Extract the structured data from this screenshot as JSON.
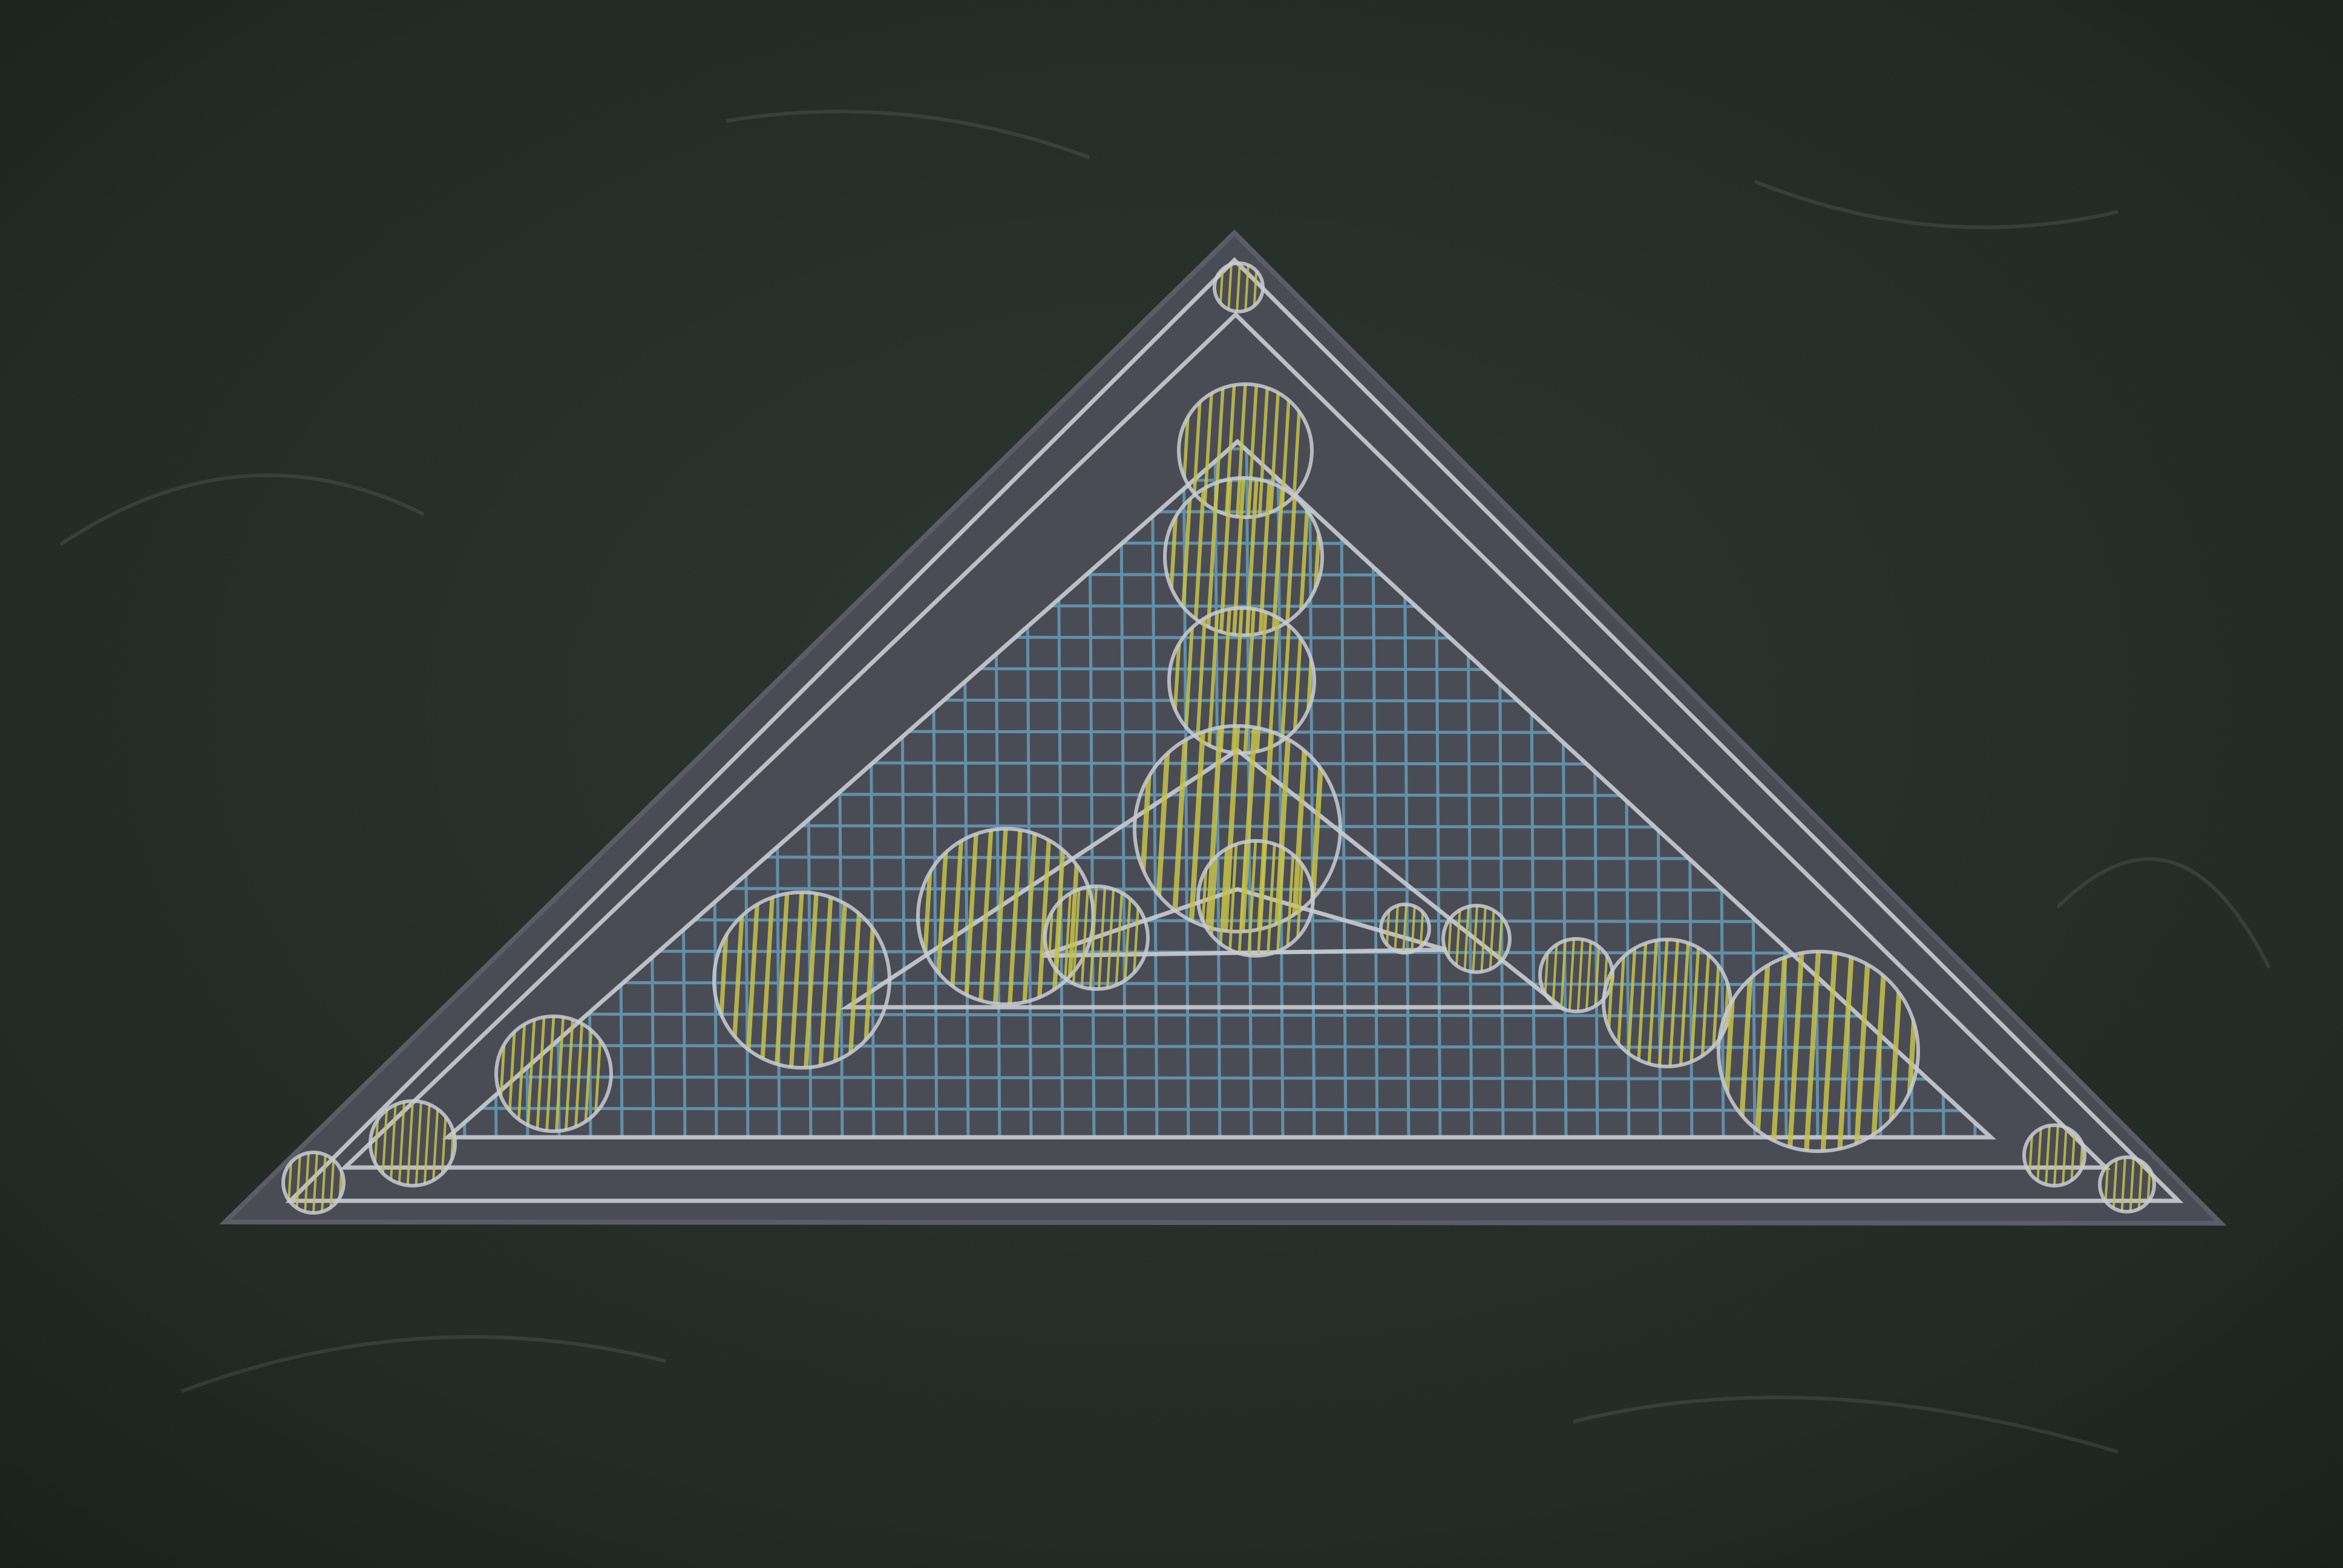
{
  "photo": {
    "subject": "triangle-drawing-on-chalkboard",
    "colors": {
      "board": "#232a26",
      "board_light": "#2e3630",
      "paper": "#4a4c55",
      "paper_edge": "#5b5d66",
      "chalk_white": "#c9ccd2",
      "chalk_blue": "#6aa7c4",
      "chalk_yellow": "#c7c24a"
    }
  }
}
